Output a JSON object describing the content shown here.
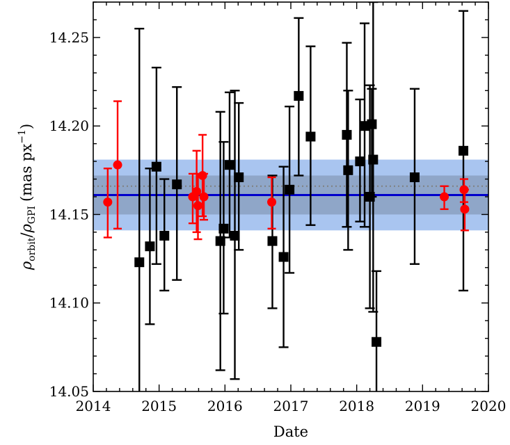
{
  "chart_data": {
    "type": "scatter",
    "xlabel": "Date",
    "ylabel_parts": {
      "rho1": "ρ",
      "sub1": "orbit",
      "slash": "/",
      "rho2": "ρ",
      "sub2": "GPI",
      "unit": "(mas px",
      "exp": "−1",
      "close": ")"
    },
    "xlim": [
      2014,
      2020
    ],
    "ylim": [
      14.05,
      14.27
    ],
    "xticks": [
      "2014",
      "2015",
      "2016",
      "2017",
      "2018",
      "2019",
      "2020"
    ],
    "yticks": [
      "14.05",
      "14.10",
      "14.15",
      "14.20",
      "14.25"
    ],
    "grid": false,
    "reference": {
      "mean": 14.161,
      "inner_band": [
        14.15,
        14.172
      ],
      "outer_band": [
        14.141,
        14.181
      ],
      "dotted_line": 14.166
    },
    "colors": {
      "black_series": "#000000",
      "red_series": "#ff0000",
      "mean_line": "#0000cc",
      "band_outer": "#a9c5f0",
      "band_inner": "#8fa6c8",
      "dotted_line": "#808080"
    },
    "series": [
      {
        "marker": "square",
        "color": "#000000",
        "points": [
          {
            "x": 2014.7,
            "y": 14.123,
            "ylo": 14.04,
            "yhi": 14.255
          },
          {
            "x": 2014.86,
            "y": 14.132,
            "ylo": 14.088,
            "yhi": 14.176
          },
          {
            "x": 2014.96,
            "y": 14.177,
            "ylo": 14.122,
            "yhi": 14.233
          },
          {
            "x": 2015.08,
            "y": 14.138,
            "ylo": 14.107,
            "yhi": 14.17
          },
          {
            "x": 2015.27,
            "y": 14.167,
            "ylo": 14.113,
            "yhi": 14.222
          },
          {
            "x": 2015.93,
            "y": 14.135,
            "ylo": 14.062,
            "yhi": 14.208
          },
          {
            "x": 2015.98,
            "y": 14.142,
            "ylo": 14.094,
            "yhi": 14.191
          },
          {
            "x": 2016.07,
            "y": 14.178,
            "ylo": 14.137,
            "yhi": 14.219
          },
          {
            "x": 2016.15,
            "y": 14.138,
            "ylo": 14.057,
            "yhi": 14.22
          },
          {
            "x": 2016.21,
            "y": 14.171,
            "ylo": 14.13,
            "yhi": 14.213
          },
          {
            "x": 2016.72,
            "y": 14.135,
            "ylo": 14.097,
            "yhi": 14.172
          },
          {
            "x": 2016.89,
            "y": 14.126,
            "ylo": 14.075,
            "yhi": 14.177
          },
          {
            "x": 2016.98,
            "y": 14.164,
            "ylo": 14.117,
            "yhi": 14.211
          },
          {
            "x": 2017.12,
            "y": 14.217,
            "ylo": 14.172,
            "yhi": 14.261
          },
          {
            "x": 2017.3,
            "y": 14.194,
            "ylo": 14.144,
            "yhi": 14.245
          },
          {
            "x": 2017.85,
            "y": 14.195,
            "ylo": 14.143,
            "yhi": 14.247
          },
          {
            "x": 2017.87,
            "y": 14.175,
            "ylo": 14.13,
            "yhi": 14.22
          },
          {
            "x": 2018.05,
            "y": 14.18,
            "ylo": 14.146,
            "yhi": 14.215
          },
          {
            "x": 2018.12,
            "y": 14.2,
            "ylo": 14.143,
            "yhi": 14.258
          },
          {
            "x": 2018.2,
            "y": 14.16,
            "ylo": 14.097,
            "yhi": 14.223
          },
          {
            "x": 2018.23,
            "y": 14.201,
            "ylo": 14.16,
            "yhi": 14.221
          },
          {
            "x": 2018.25,
            "y": 14.181,
            "ylo": 14.095,
            "yhi": 14.27
          },
          {
            "x": 2018.3,
            "y": 14.078,
            "ylo": 14.04,
            "yhi": 14.118
          },
          {
            "x": 2018.88,
            "y": 14.171,
            "ylo": 14.122,
            "yhi": 14.221
          },
          {
            "x": 2019.62,
            "y": 14.186,
            "ylo": 14.107,
            "yhi": 14.265
          }
        ]
      },
      {
        "marker": "circle",
        "color": "#ff0000",
        "points": [
          {
            "x": 2014.22,
            "y": 14.157,
            "ylo": 14.137,
            "yhi": 14.176
          },
          {
            "x": 2014.37,
            "y": 14.178,
            "ylo": 14.142,
            "yhi": 14.214
          },
          {
            "x": 2015.51,
            "y": 14.16,
            "ylo": 14.145,
            "yhi": 14.173
          },
          {
            "x": 2015.57,
            "y": 14.163,
            "ylo": 14.14,
            "yhi": 14.186
          },
          {
            "x": 2015.59,
            "y": 14.155,
            "ylo": 14.136,
            "yhi": 14.173
          },
          {
            "x": 2015.66,
            "y": 14.172,
            "ylo": 14.149,
            "yhi": 14.195
          },
          {
            "x": 2015.68,
            "y": 14.16,
            "ylo": 14.147,
            "yhi": 14.173
          },
          {
            "x": 2016.71,
            "y": 14.157,
            "ylo": 14.142,
            "yhi": 14.171
          },
          {
            "x": 2019.33,
            "y": 14.16,
            "ylo": 14.153,
            "yhi": 14.166
          },
          {
            "x": 2019.63,
            "y": 14.164,
            "ylo": 14.157,
            "yhi": 14.17
          },
          {
            "x": 2019.64,
            "y": 14.153,
            "ylo": 14.141,
            "yhi": 14.164
          }
        ]
      }
    ]
  }
}
